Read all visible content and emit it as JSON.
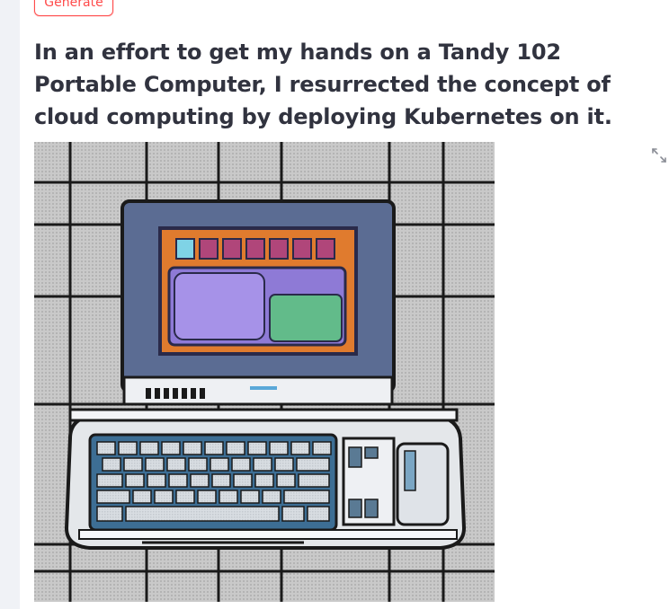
{
  "toolbar": {
    "generate_label": "Generate"
  },
  "main": {
    "headline": "In an effort to get my hands on a Tandy 102 Portable Computer, I resurrected the concept of cloud computing by deploying Kubernetes on it."
  },
  "image": {
    "subject": "laptop-illustration"
  },
  "icons": {
    "fullscreen": "expand-icon"
  },
  "colors": {
    "accent": "#ff4b4b",
    "text": "#31333f",
    "sidebar": "#f0f2f6"
  }
}
